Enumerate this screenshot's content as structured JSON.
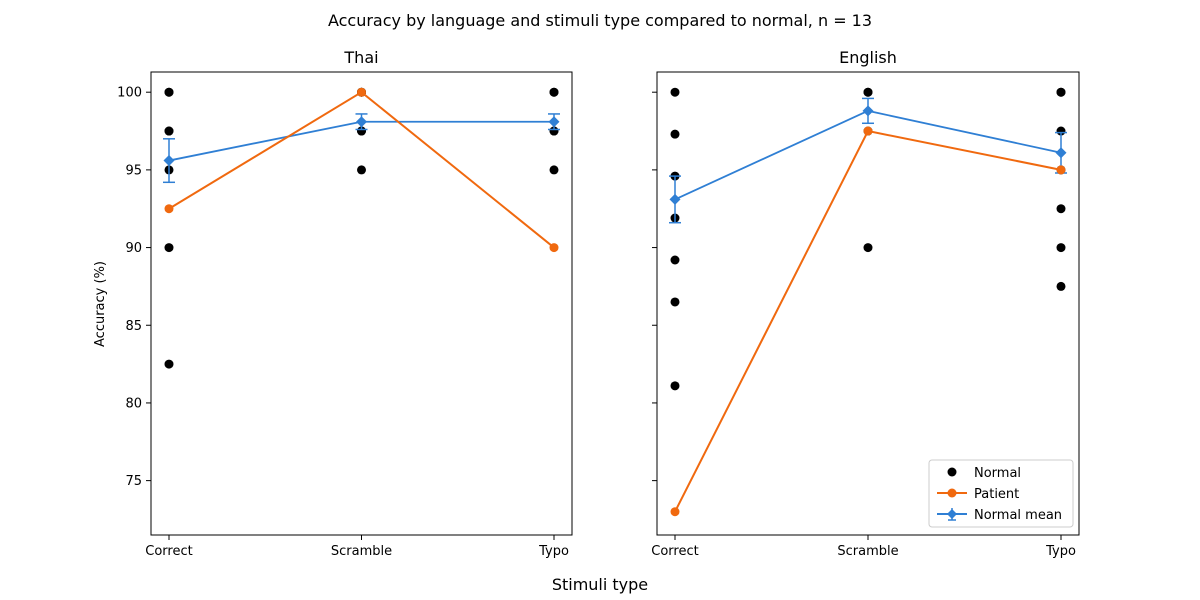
{
  "figure": {
    "suptitle": "Accuracy by language and stimuli type compared to normal, n = 13",
    "xlabel": "Stimuli type",
    "ylabel": "Accuracy (%)"
  },
  "colors": {
    "normal": "#000000",
    "patient": "#f0690f",
    "normal_mean": "#2f7fd4"
  },
  "legend": {
    "placement": "lower-right",
    "items": [
      {
        "key": "normal",
        "label": "Normal",
        "marker": "dot"
      },
      {
        "key": "patient",
        "label": "Patient",
        "marker": "line-dot"
      },
      {
        "key": "normal_mean",
        "label": "Normal mean",
        "marker": "line-diamond-errorbar"
      }
    ]
  },
  "chart_data": [
    {
      "type": "scatter",
      "title": "Thai",
      "xlabel": "",
      "ylabel": "Accuracy (%)",
      "categories": [
        "Correct",
        "Scramble",
        "Typo"
      ],
      "ylim": [
        71.5,
        101.3
      ],
      "yticks": [
        75,
        80,
        85,
        90,
        95,
        100
      ],
      "show_ytick_labels": true,
      "normal_points": [
        [
          100,
          100,
          97.5,
          97.5,
          95,
          90,
          82.5
        ],
        [
          100,
          100,
          97.5,
          97.5,
          95
        ],
        [
          100,
          100,
          97.5,
          97.5,
          95
        ]
      ],
      "patient": [
        92.5,
        100,
        90
      ],
      "normal_mean": [
        95.6,
        98.1,
        98.1
      ],
      "normal_mean_error": [
        1.4,
        0.5,
        0.5
      ]
    },
    {
      "type": "scatter",
      "title": "English",
      "xlabel": "",
      "ylabel": "",
      "categories": [
        "Correct",
        "Scramble",
        "Typo"
      ],
      "ylim": [
        71.5,
        101.3
      ],
      "yticks": [
        75,
        80,
        85,
        90,
        95,
        100
      ],
      "show_ytick_labels": false,
      "normal_points": [
        [
          100,
          97.3,
          94.6,
          91.9,
          89.2,
          86.5,
          81.1
        ],
        [
          100,
          100,
          97.5,
          90
        ],
        [
          100,
          100,
          97.5,
          95,
          92.5,
          90,
          87.5
        ]
      ],
      "patient": [
        73,
        97.5,
        95
      ],
      "normal_mean": [
        93.1,
        98.8,
        96.1
      ],
      "normal_mean_error": [
        1.5,
        0.8,
        1.3
      ]
    }
  ]
}
